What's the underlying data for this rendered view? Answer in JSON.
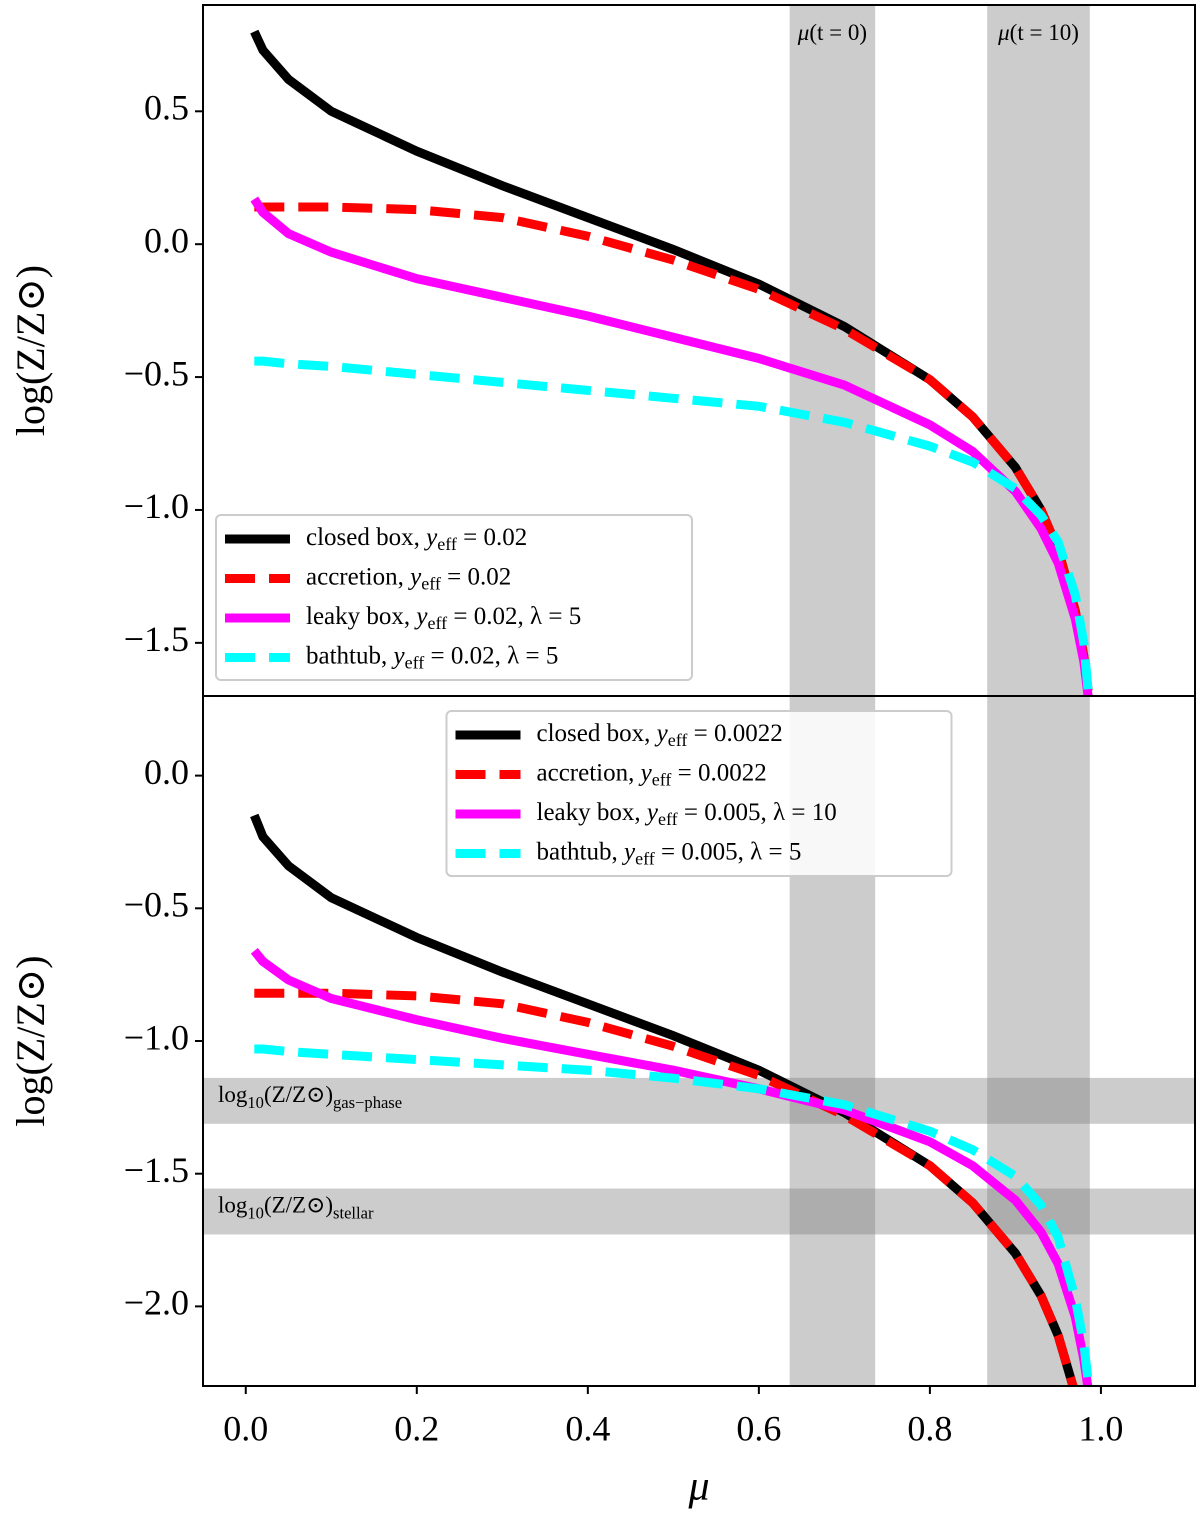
{
  "chart_data": [
    {
      "type": "line",
      "ylabel": "log(Z/Z⊙)",
      "xlim": [
        -0.05,
        1.11
      ],
      "ylim": [
        -1.7,
        0.9
      ],
      "yticks": [
        {
          "value": -1.5,
          "label": "−1.5"
        },
        {
          "value": -1.0,
          "label": "−1.0"
        },
        {
          "value": -0.5,
          "label": "−0.5"
        },
        {
          "value": 0,
          "label": "0.0"
        },
        0.5
      ],
      "x": [
        0.01,
        0.02,
        0.05,
        0.1,
        0.2,
        0.3,
        0.4,
        0.5,
        0.6,
        0.7,
        0.8,
        0.85,
        0.9,
        0.93,
        0.95,
        0.97,
        0.98,
        0.985
      ],
      "series": [
        {
          "name": "closed box, yeff = 0.02",
          "color": "#000000",
          "style": "solid",
          "values": [
            0.8,
            0.73,
            0.62,
            0.5,
            0.35,
            0.22,
            0.1,
            -0.02,
            -0.15,
            -0.31,
            -0.51,
            -0.65,
            -0.84,
            -1.0,
            -1.15,
            -1.38,
            -1.55,
            -1.68
          ]
        },
        {
          "name": "accretion, yeff = 0.02",
          "color": "#ff0000",
          "style": "dashed",
          "values": [
            0.14,
            0.14,
            0.14,
            0.14,
            0.13,
            0.1,
            0.03,
            -0.06,
            -0.17,
            -0.32,
            -0.51,
            -0.65,
            -0.84,
            -1.0,
            -1.15,
            -1.38,
            -1.55,
            -1.68
          ]
        },
        {
          "name": "leaky box, yeff = 0.02, λ = 5",
          "color": "#ff00ff",
          "style": "solid",
          "values": [
            0.17,
            0.12,
            0.04,
            -0.03,
            -0.13,
            -0.2,
            -0.27,
            -0.35,
            -0.43,
            -0.53,
            -0.68,
            -0.78,
            -0.93,
            -1.07,
            -1.2,
            -1.41,
            -1.57,
            -1.7
          ]
        },
        {
          "name": "bathtub, yeff = 0.02, λ = 5",
          "color": "#00ffff",
          "style": "dashed",
          "values": [
            -0.44,
            -0.44,
            -0.45,
            -0.46,
            -0.49,
            -0.52,
            -0.55,
            -0.58,
            -0.61,
            -0.67,
            -0.76,
            -0.82,
            -0.92,
            -1.02,
            -1.12,
            -1.32,
            -1.5,
            -1.68
          ]
        }
      ],
      "vbands": [
        {
          "x": [
            0.636,
            0.736
          ],
          "label": "μ(t = 0)"
        },
        {
          "x": [
            0.867,
            0.987
          ],
          "label": "μ(t = 10)"
        }
      ],
      "legend": "lower left"
    },
    {
      "type": "line",
      "xlabel": "μ",
      "ylabel": "log(Z/Z⊙)",
      "xlim": [
        -0.05,
        1.11
      ],
      "ylim": [
        -2.3,
        0.3
      ],
      "xticks": [
        {
          "value": 0,
          "label": "0.0"
        },
        0.2,
        0.4,
        0.6,
        0.8,
        {
          "value": 1.0,
          "label": "1.0"
        }
      ],
      "yticks": [
        {
          "value": -2.0,
          "label": "−2.0"
        },
        {
          "value": -1.5,
          "label": "−1.5"
        },
        {
          "value": -1.0,
          "label": "−1.0"
        },
        {
          "value": -0.5,
          "label": "−0.5"
        },
        {
          "value": 0,
          "label": "0.0"
        }
      ],
      "x": [
        0.01,
        0.02,
        0.05,
        0.1,
        0.2,
        0.3,
        0.4,
        0.5,
        0.6,
        0.7,
        0.8,
        0.85,
        0.9,
        0.93,
        0.95,
        0.97,
        0.98,
        0.985
      ],
      "series": [
        {
          "name": "closed box, yeff = 0.0022",
          "color": "#000000",
          "style": "solid",
          "values": [
            -0.15,
            -0.23,
            -0.34,
            -0.46,
            -0.61,
            -0.74,
            -0.86,
            -0.98,
            -1.11,
            -1.27,
            -1.47,
            -1.61,
            -1.8,
            -1.96,
            -2.11,
            -2.33,
            -2.51,
            -2.64
          ]
        },
        {
          "name": "accretion, yeff = 0.0022",
          "color": "#ff0000",
          "style": "dashed",
          "values": [
            -0.82,
            -0.82,
            -0.82,
            -0.82,
            -0.83,
            -0.86,
            -0.93,
            -1.02,
            -1.13,
            -1.28,
            -1.47,
            -1.61,
            -1.8,
            -1.96,
            -2.11,
            -2.33,
            -2.51,
            -2.64
          ]
        },
        {
          "name": "leaky box, yeff = 0.005, λ = 10",
          "color": "#ff00ff",
          "style": "solid",
          "values": [
            -0.66,
            -0.7,
            -0.77,
            -0.84,
            -0.92,
            -0.99,
            -1.05,
            -1.11,
            -1.18,
            -1.26,
            -1.38,
            -1.47,
            -1.6,
            -1.72,
            -1.84,
            -2.04,
            -2.2,
            -2.31
          ]
        },
        {
          "name": "bathtub, yeff = 0.005, λ = 5",
          "color": "#00ffff",
          "style": "dashed",
          "values": [
            -1.03,
            -1.03,
            -1.04,
            -1.05,
            -1.07,
            -1.09,
            -1.11,
            -1.14,
            -1.18,
            -1.24,
            -1.34,
            -1.41,
            -1.51,
            -1.62,
            -1.74,
            -1.97,
            -2.14,
            -2.28
          ]
        }
      ],
      "vbands": [
        {
          "x": [
            0.636,
            0.736
          ]
        },
        {
          "x": [
            0.867,
            0.987
          ]
        }
      ],
      "hbands": [
        {
          "y": [
            -1.312,
            -1.139
          ],
          "label": "log10(Z/Z⊙)gas−phase"
        },
        {
          "y": [
            -1.729,
            -1.556
          ],
          "label": "log10(Z/Z⊙)stellar"
        }
      ],
      "legend": "upper center"
    }
  ]
}
